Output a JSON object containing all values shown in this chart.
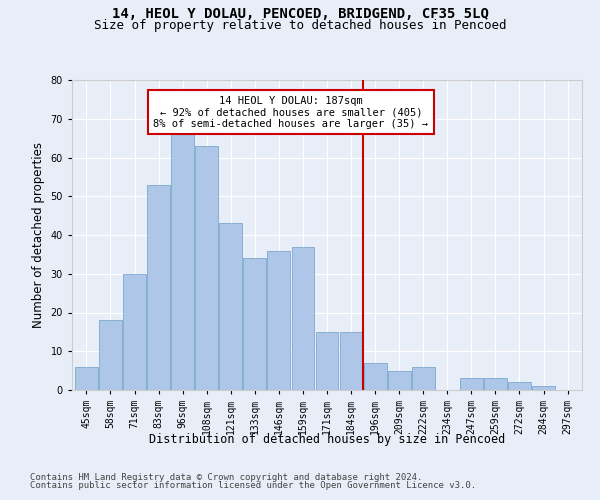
{
  "title": "14, HEOL Y DOLAU, PENCOED, BRIDGEND, CF35 5LQ",
  "subtitle": "Size of property relative to detached houses in Pencoed",
  "xlabel": "Distribution of detached houses by size in Pencoed",
  "ylabel": "Number of detached properties",
  "categories": [
    "45sqm",
    "58sqm",
    "71sqm",
    "83sqm",
    "96sqm",
    "108sqm",
    "121sqm",
    "133sqm",
    "146sqm",
    "159sqm",
    "171sqm",
    "184sqm",
    "196sqm",
    "209sqm",
    "222sqm",
    "234sqm",
    "247sqm",
    "259sqm",
    "272sqm",
    "284sqm",
    "297sqm"
  ],
  "values": [
    6,
    18,
    30,
    53,
    66,
    63,
    43,
    34,
    36,
    37,
    15,
    15,
    7,
    5,
    6,
    0,
    3,
    3,
    2,
    1,
    0
  ],
  "bar_color": "#aec6e8",
  "bar_edge_color": "#6b9fc8",
  "vline_color": "#cc0000",
  "annotation_text": "14 HEOL Y DOLAU: 187sqm\n← 92% of detached houses are smaller (405)\n8% of semi-detached houses are larger (35) →",
  "annotation_box_color": "#ffffff",
  "annotation_box_edge": "#cc0000",
  "ylim": [
    0,
    80
  ],
  "yticks": [
    0,
    10,
    20,
    30,
    40,
    50,
    60,
    70,
    80
  ],
  "background_color": "#e8eef8",
  "footer1": "Contains HM Land Registry data © Crown copyright and database right 2024.",
  "footer2": "Contains public sector information licensed under the Open Government Licence v3.0.",
  "title_fontsize": 10,
  "subtitle_fontsize": 9,
  "axis_label_fontsize": 8.5,
  "tick_fontsize": 7,
  "footer_fontsize": 6.5
}
